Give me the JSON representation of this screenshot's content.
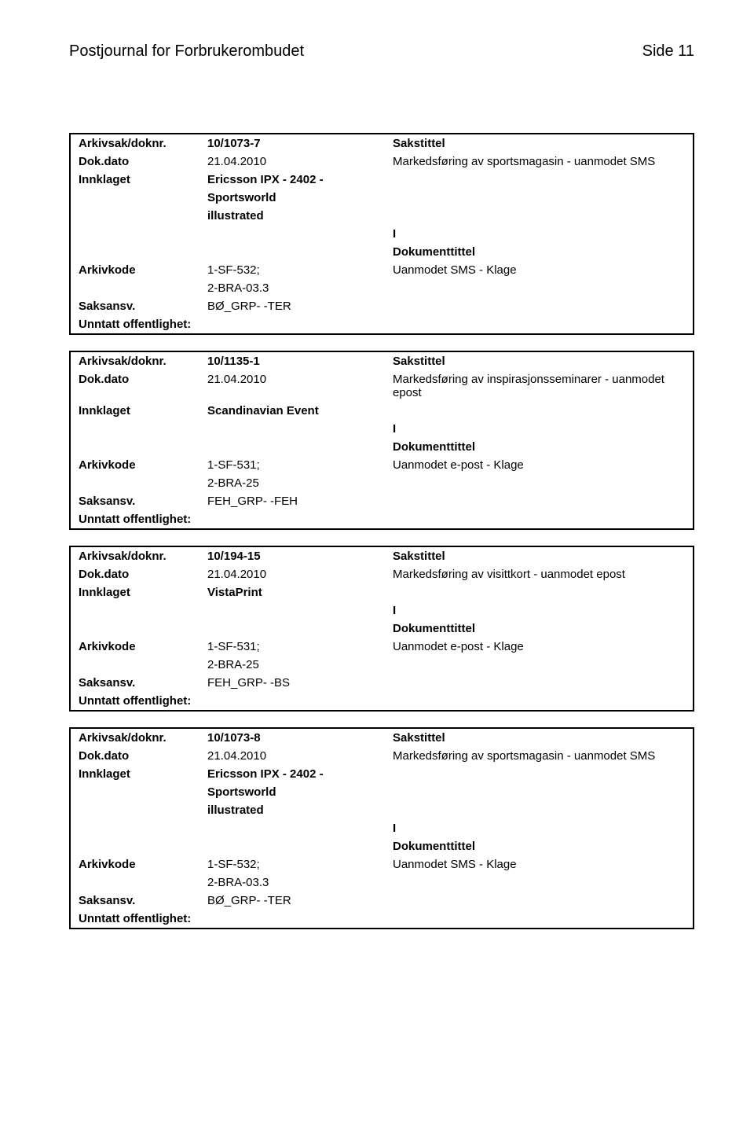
{
  "header": {
    "title": "Postjournal for Forbrukerombudet",
    "page_label": "Side 11"
  },
  "labels": {
    "arkivsak": "Arkivsak/doknr.",
    "dokdato": "Dok.dato",
    "innklaget": "Innklaget",
    "arkivkode": "Arkivkode",
    "saksansv": "Saksansv.",
    "unntatt": "Unntatt offentlighet:",
    "sakstittel": "Sakstittel",
    "dokumenttittel": "Dokumenttittel",
    "i": "I"
  },
  "entries": [
    {
      "doknr": "10/1073-7",
      "dokdato": "21.04.2010",
      "saks_text": "Markedsføring av sportsmagasin - uanmodet SMS",
      "innklaget_lines": [
        "Ericsson IPX - 2402 -",
        "Sportsworld",
        "illustrated"
      ],
      "arkivkode_lines": [
        "1-SF-532;",
        "2-BRA-03.3"
      ],
      "doktittel": "Uanmodet SMS - Klage",
      "saksansv": "BØ_GRP- -TER"
    },
    {
      "doknr": "10/1135-1",
      "dokdato": "21.04.2010",
      "saks_text": "Markedsføring av inspirasjonsseminarer - uanmodet epost",
      "innklaget_lines": [
        "Scandinavian Event"
      ],
      "arkivkode_lines": [
        "1-SF-531;",
        "2-BRA-25"
      ],
      "doktittel": "Uanmodet e-post - Klage",
      "saksansv": "FEH_GRP- -FEH"
    },
    {
      "doknr": "10/194-15",
      "dokdato": "21.04.2010",
      "saks_text": "Markedsføring av visittkort - uanmodet epost",
      "innklaget_lines": [
        "VistaPrint"
      ],
      "arkivkode_lines": [
        "1-SF-531;",
        "2-BRA-25"
      ],
      "doktittel": "Uanmodet e-post - Klage",
      "saksansv": "FEH_GRP- -BS"
    },
    {
      "doknr": "10/1073-8",
      "dokdato": "21.04.2010",
      "saks_text": "Markedsføring av sportsmagasin - uanmodet SMS",
      "innklaget_lines": [
        "Ericsson IPX - 2402 -",
        "Sportsworld",
        "illustrated"
      ],
      "arkivkode_lines": [
        "1-SF-532;",
        "2-BRA-03.3"
      ],
      "doktittel": "Uanmodet SMS - Klage",
      "saksansv": "BØ_GRP- -TER"
    }
  ]
}
